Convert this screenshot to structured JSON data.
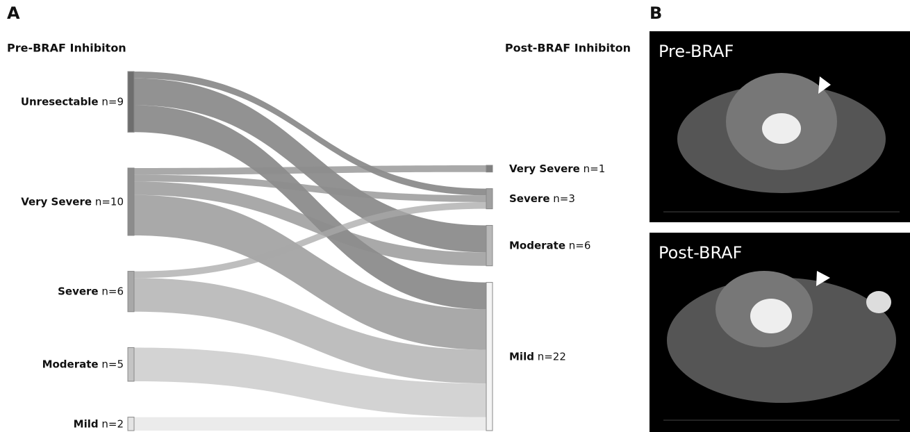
{
  "chart_data": {
    "type": "sankey",
    "panel_label": "A",
    "left_title": "Pre-BRAF Inhibiton",
    "right_title": "Post-BRAF Inhibiton",
    "nodes": [
      {
        "name": "Unresectable",
        "value": 9,
        "value_label": "n=9",
        "side": "left",
        "color": "#6e6e6e"
      },
      {
        "name": "Very Severe",
        "value": 10,
        "value_label": "n=10",
        "side": "left",
        "color": "#8c8c8c"
      },
      {
        "name": "Severe",
        "value": 6,
        "value_label": "n=6",
        "side": "left",
        "color": "#a8a8a8"
      },
      {
        "name": "Moderate",
        "value": 5,
        "value_label": "n=5",
        "side": "left",
        "color": "#c4c4c4"
      },
      {
        "name": "Mild",
        "value": 2,
        "value_label": "n=2",
        "side": "left",
        "color": "#e4e4e4"
      },
      {
        "name": "Very Severe",
        "value": 1,
        "value_label": "n=1",
        "side": "right",
        "color": "#808080"
      },
      {
        "name": "Severe",
        "value": 3,
        "value_label": "n=3",
        "side": "right",
        "color": "#a0a0a0"
      },
      {
        "name": "Moderate",
        "value": 6,
        "value_label": "n=6",
        "side": "right",
        "color": "#b8b8b8"
      },
      {
        "name": "Mild",
        "value": 22,
        "value_label": "n=22",
        "side": "right",
        "color": "#f4f4f4"
      }
    ],
    "links": [
      {
        "source": 0,
        "target": 6,
        "value": 1
      },
      {
        "source": 0,
        "target": 7,
        "value": 4
      },
      {
        "source": 0,
        "target": 8,
        "value": 4
      },
      {
        "source": 1,
        "target": 5,
        "value": 1
      },
      {
        "source": 1,
        "target": 6,
        "value": 1
      },
      {
        "source": 1,
        "target": 7,
        "value": 2
      },
      {
        "source": 1,
        "target": 8,
        "value": 6
      },
      {
        "source": 2,
        "target": 6,
        "value": 1
      },
      {
        "source": 2,
        "target": 8,
        "value": 5
      },
      {
        "source": 3,
        "target": 8,
        "value": 5
      },
      {
        "source": 4,
        "target": 8,
        "value": 2
      }
    ]
  },
  "images": {
    "panel_label": "B",
    "items": [
      {
        "label": "Pre-BRAF"
      },
      {
        "label": "Post-BRAF"
      }
    ]
  }
}
